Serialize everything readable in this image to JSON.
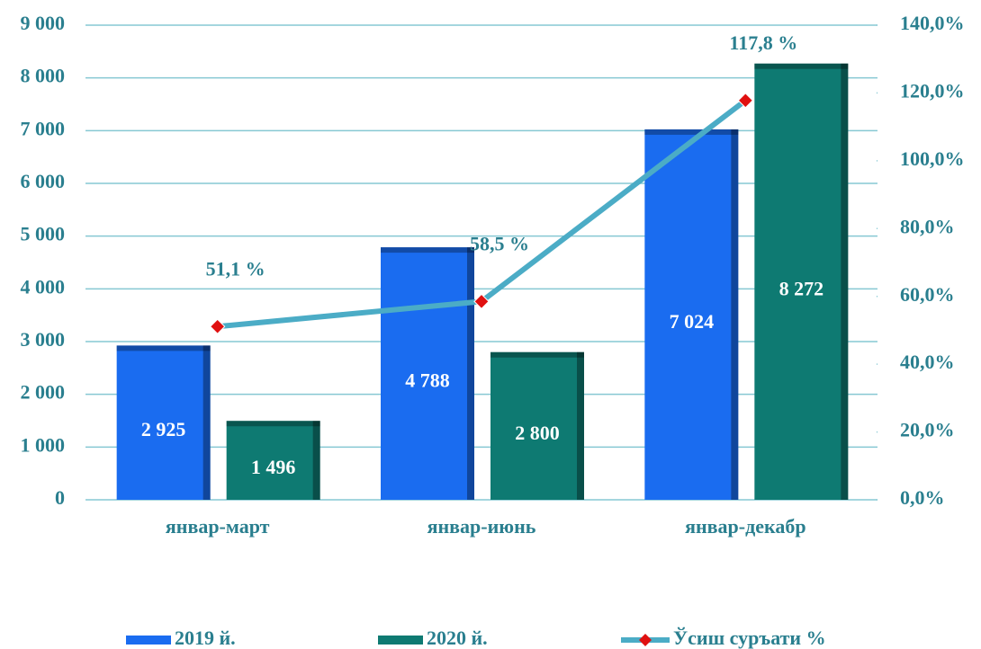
{
  "chart_data": {
    "type": "bar-line",
    "categories": [
      "январ-март",
      "январ-июнь",
      "январ-декабр"
    ],
    "series": [
      {
        "name": "2019 й.",
        "type": "bar",
        "color": "#1a6cf0",
        "values": [
          2925,
          4788,
          7024
        ],
        "value_labels": [
          "2 925",
          "4 788",
          "7 024"
        ]
      },
      {
        "name": "2020 й.",
        "type": "bar",
        "color": "#0e7a72",
        "values": [
          1496,
          2800,
          8272
        ],
        "value_labels": [
          "1 496",
          "2 800",
          "8 272"
        ]
      },
      {
        "name": "Ўсиш суръати %",
        "type": "line",
        "axis": "y2",
        "color": "#4bacc6",
        "marker_color": "#e01010",
        "values": [
          51.1,
          58.5,
          117.8
        ],
        "value_labels": [
          "51,1 %",
          "58,5 %",
          "117,8 %"
        ]
      }
    ],
    "ylim": [
      0,
      9000
    ],
    "yticks": [
      0,
      {
        "value": 1000,
        "label": "1 000"
      },
      {
        "value": 2000,
        "label": "2 000"
      },
      {
        "value": 3000,
        "label": "3 000"
      },
      {
        "value": 4000,
        "label": "4 000"
      },
      {
        "value": 5000,
        "label": "5 000"
      },
      {
        "value": 6000,
        "label": "6 000"
      },
      {
        "value": 7000,
        "label": "7 000"
      },
      {
        "value": 8000,
        "label": "8 000"
      },
      {
        "value": 9000,
        "label": "9 000"
      }
    ],
    "y2lim": [
      0,
      140
    ],
    "y2ticks": [
      {
        "value": 0,
        "label": "0,0%"
      },
      {
        "value": 20,
        "label": "20,0%"
      },
      {
        "value": 40,
        "label": "40,0%"
      },
      {
        "value": 60,
        "label": "60,0%"
      },
      {
        "value": 80,
        "label": "80,0%"
      },
      {
        "value": 100,
        "label": "100,0%"
      },
      {
        "value": 120,
        "label": "120,0%"
      },
      {
        "value": 140,
        "label": "140,0%"
      }
    ],
    "grid": true,
    "legend": "bottom"
  }
}
